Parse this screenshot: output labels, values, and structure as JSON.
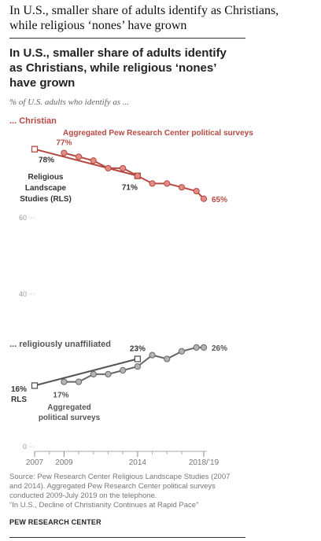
{
  "page": {
    "headline_line1": "In U.S., smaller share of adults identify as Christians,",
    "headline_line2": "while religious ‘nones’ have grown"
  },
  "chart_data": {
    "type": "line",
    "title_lines": [
      "In U.S., smaller share of adults identify",
      "as Christians, while religious ‘nones’",
      "have grown"
    ],
    "subtitle": "% of U.S. adults who identify as ...",
    "ylim": [
      0,
      80
    ],
    "y_ticks": [
      0,
      40,
      60
    ],
    "x_tick_labels": [
      {
        "x": 2007,
        "label": "2007"
      },
      {
        "x": 2009,
        "label": "2009"
      },
      {
        "x": 2014,
        "label": "2014"
      },
      {
        "x": 2018.5,
        "label": "2018/’19"
      }
    ],
    "x_minor_ticks": [
      2008,
      2010,
      2011,
      2012,
      2013,
      2015,
      2016,
      2017
    ],
    "series": [
      {
        "key": "christian_rls",
        "group": "christian",
        "marker": "square",
        "color": "#b44a41",
        "points": [
          {
            "x": 2007,
            "y": 78
          },
          {
            "x": 2014,
            "y": 71
          }
        ],
        "value_labels": [
          "78%",
          "71%"
        ]
      },
      {
        "key": "christian_surveys",
        "group": "christian",
        "marker": "circle",
        "color": "#b44a41",
        "fill": "#e58b84",
        "points": [
          {
            "x": 2009,
            "y": 77
          },
          {
            "x": 2010,
            "y": 76
          },
          {
            "x": 2011,
            "y": 75
          },
          {
            "x": 2012,
            "y": 73
          },
          {
            "x": 2013,
            "y": 73
          },
          {
            "x": 2014,
            "y": 71
          },
          {
            "x": 2015,
            "y": 69
          },
          {
            "x": 2016,
            "y": 69
          },
          {
            "x": 2017,
            "y": 68
          },
          {
            "x": 2018,
            "y": 67
          },
          {
            "x": 2018.5,
            "y": 65
          }
        ],
        "value_labels": [
          "77%",
          "65%"
        ]
      },
      {
        "key": "unaffiliated_rls",
        "group": "unaffiliated",
        "marker": "square",
        "color": "#555555",
        "points": [
          {
            "x": 2007,
            "y": 16
          },
          {
            "x": 2014,
            "y": 23
          }
        ],
        "value_labels": [
          "16%",
          "23%"
        ]
      },
      {
        "key": "unaffiliated_surveys",
        "group": "unaffiliated",
        "marker": "circle",
        "color": "#666666",
        "fill": "#b3b3b8",
        "points": [
          {
            "x": 2009,
            "y": 17
          },
          {
            "x": 2010,
            "y": 17
          },
          {
            "x": 2011,
            "y": 19
          },
          {
            "x": 2012,
            "y": 19
          },
          {
            "x": 2013,
            "y": 20
          },
          {
            "x": 2014,
            "y": 21
          },
          {
            "x": 2015,
            "y": 24
          },
          {
            "x": 2016,
            "y": 23
          },
          {
            "x": 2017,
            "y": 25
          },
          {
            "x": 2018,
            "y": 26
          },
          {
            "x": 2018.5,
            "y": 26
          }
        ],
        "value_labels": [
          "17%",
          "26%"
        ]
      }
    ],
    "group_labels": {
      "christian": "... Christian",
      "unaffiliated": "... religiously unaffiliated"
    },
    "annotations": {
      "aggregated_pew": "Aggregated Pew Research Center political surveys",
      "rls_lines": [
        "Religious",
        "Landscape",
        "Studies (RLS)"
      ],
      "rls_short": "RLS",
      "aggregated_political_lines": [
        "Aggregated",
        "political surveys"
      ]
    },
    "source_lines": [
      "Source: Pew Research Center Religious Landscape Studies (2007",
      "and 2014). Aggregated Pew Research Center political surveys",
      "conducted 2009-July 2019 on the telephone.",
      "“In U.S., Decline of Christianity Continues at Rapid Pace”"
    ],
    "brand": "PEW RESEARCH CENTER"
  }
}
